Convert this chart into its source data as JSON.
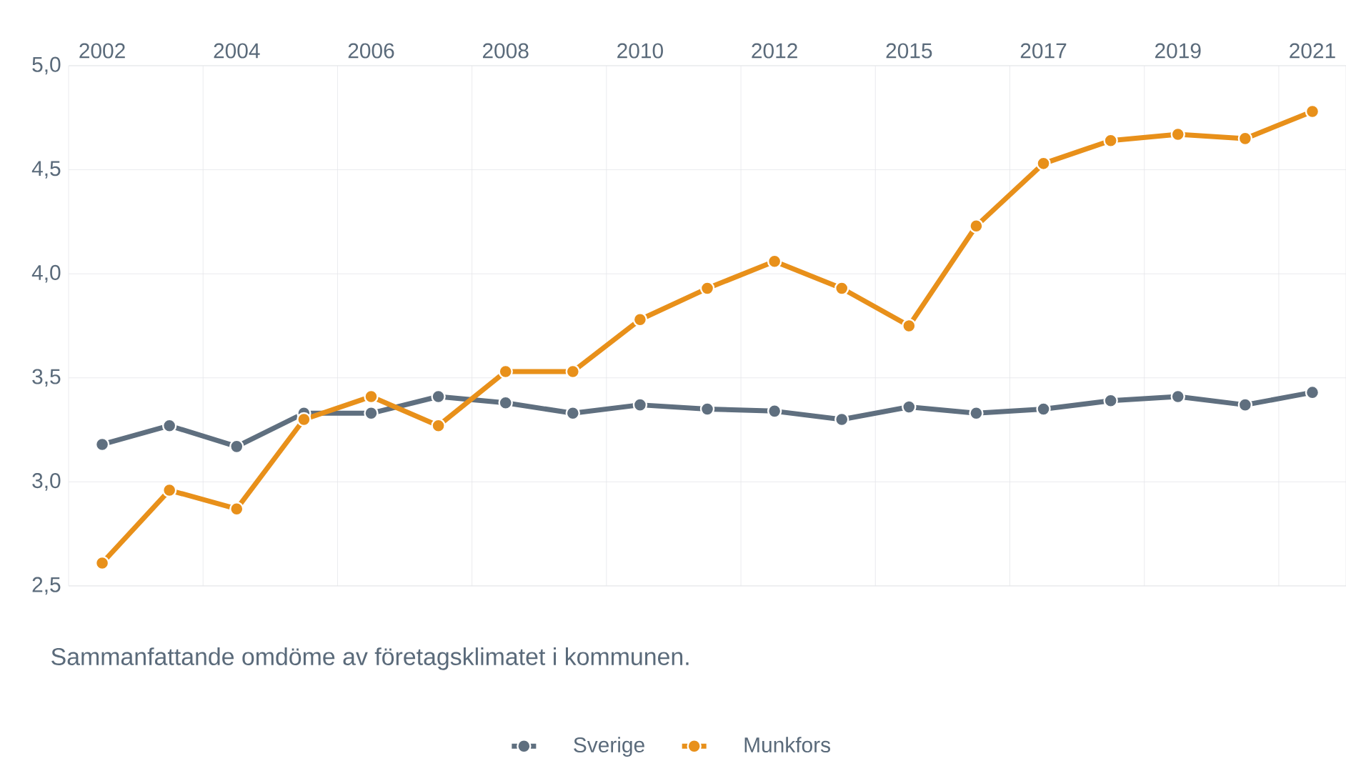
{
  "chart_data": {
    "type": "line",
    "categories": [
      "2002",
      null,
      "2004",
      null,
      "2006",
      null,
      "2008",
      null,
      "2010",
      null,
      "2012",
      null,
      "2015",
      null,
      "2017",
      null,
      "2019",
      null,
      "2021"
    ],
    "series": [
      {
        "name": "Sverige",
        "color": "#5f6f7f",
        "values": [
          3.18,
          3.27,
          3.17,
          3.33,
          3.33,
          3.41,
          3.38,
          3.33,
          3.37,
          3.35,
          3.34,
          3.3,
          3.36,
          3.33,
          3.35,
          3.39,
          3.41,
          3.37,
          3.43
        ]
      },
      {
        "name": "Munkfors",
        "color": "#e8901a",
        "values": [
          2.61,
          2.96,
          2.87,
          3.3,
          3.41,
          3.27,
          3.53,
          3.53,
          3.78,
          3.93,
          4.06,
          3.93,
          3.75,
          4.23,
          4.53,
          4.64,
          4.67,
          4.65,
          4.78
        ]
      }
    ],
    "ylim": [
      2.5,
      5.0
    ],
    "yticks": [
      {
        "value": 2.5,
        "label": "2,5"
      },
      {
        "value": 3.0,
        "label": "3,0"
      },
      {
        "value": 3.5,
        "label": "3,5"
      },
      {
        "value": 4.0,
        "label": "4,0"
      },
      {
        "value": 4.5,
        "label": "4,5"
      },
      {
        "value": 5.0,
        "label": "5,0"
      }
    ],
    "annotations": [
      "Sammanfattande omdöme av företagsklimatet i kommunen."
    ],
    "grid": true,
    "legend": "bottom",
    "marker": "circle",
    "line_style": "solid"
  }
}
